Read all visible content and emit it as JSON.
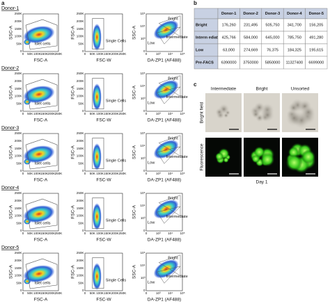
{
  "panel_labels": {
    "a": "a",
    "b": "b",
    "c": "c"
  },
  "panel_a": {
    "donors": [
      "Donor-1",
      "Donor-2",
      "Donor-3",
      "Donor-4",
      "Donor-5"
    ],
    "plots": [
      {
        "y_label": "SSC-A",
        "x_label": "FSC-A",
        "x_ticks": [
          "0",
          "50K",
          "100K",
          "150K",
          "200K",
          "250K"
        ],
        "y_ticks": [
          "0",
          "50K",
          "100K",
          "150K",
          "200K",
          "250K"
        ],
        "gates": [
          "Islet cells"
        ]
      },
      {
        "y_label": "FSC-A",
        "x_label": "FSC-W",
        "x_ticks": [
          "0",
          "50K",
          "100K",
          "150K",
          "200K",
          "250K"
        ],
        "y_ticks": [
          "0",
          "50K",
          "100K",
          "150K",
          "200K",
          "250K"
        ],
        "gates": [
          "Single Cells"
        ]
      },
      {
        "y_label": "SSC-A",
        "x_label": "DA-ZP1 (AF488)",
        "x_ticks": [
          "0",
          "10³",
          "10⁴",
          "10⁵"
        ],
        "y_ticks": [
          "0",
          "10³",
          "10⁴",
          "10⁵"
        ],
        "gates": [
          "Bright",
          "Intermediate",
          "Low"
        ]
      }
    ]
  },
  "table": {
    "header": [
      "",
      "Donor-1",
      "Donor-2",
      "Donor-3",
      "Donor-4",
      "Donor-5"
    ],
    "rows": [
      [
        "Bright",
        "176,260",
        "231,495",
        "505,750",
        "341,700",
        "156,205"
      ],
      [
        "Interm ediate",
        "425,766",
        "584,000",
        "645,000",
        "785,750",
        "491,280"
      ],
      [
        "Low",
        "63,000",
        "274,669",
        "76,375",
        "184,325",
        "195,615"
      ],
      [
        "Pre-FACS",
        "6390000",
        "3750000",
        "5850000",
        "11327400",
        "6699000"
      ]
    ]
  },
  "panel_c": {
    "columns": [
      "Intermediate",
      "Bright",
      "Unsorted"
    ],
    "rows": [
      "Bright field",
      "Fluorescence"
    ],
    "footer": "Day 1"
  }
}
